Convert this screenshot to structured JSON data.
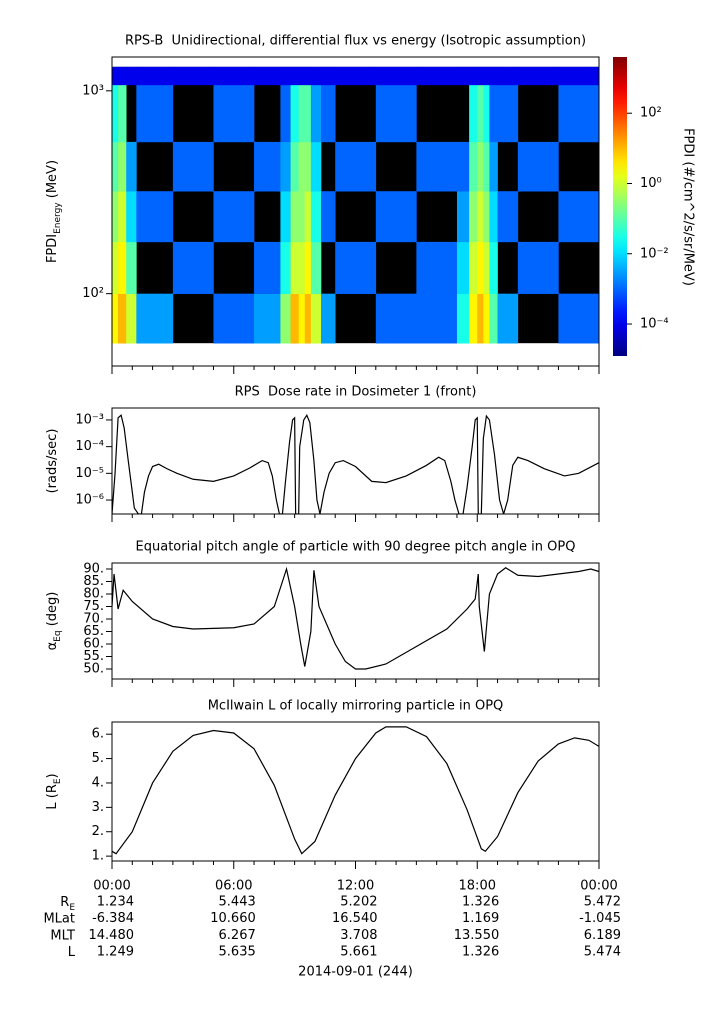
{
  "chart_data": [
    {
      "type": "heatmap",
      "title": "RPS-B  Unidirectional, differential flux vs energy (Isotropic assumption)",
      "ylabel": [
        "FPDI",
        "Energy",
        " (MeV)"
      ],
      "log_y": true,
      "xlim": [
        0,
        24
      ],
      "xticks": [
        0,
        6,
        12,
        18,
        24
      ],
      "xminor": 1,
      "ylim": [
        44,
        1468
      ],
      "yticks": [
        {
          "value": 100,
          "label": "10²"
        },
        {
          "value": 1000,
          "label": "10³"
        }
      ],
      "x_edges": [
        0,
        0.3,
        0.7,
        1.2,
        3,
        5,
        7,
        8.3,
        8.8,
        9.2,
        9.5,
        9.8,
        10.3,
        11,
        13,
        15,
        17,
        17.6,
        18,
        18.3,
        18.6,
        19,
        20,
        22,
        24
      ],
      "y_edges": [
        57,
        100,
        180,
        320,
        560,
        1070,
        1313
      ],
      "z": [
        [
          3,
          1,
          0.3,
          0.1,
          0.03,
          0.0001
        ],
        [
          10,
          3,
          1,
          0.3,
          0.1,
          0.0001
        ],
        [
          1,
          0.1,
          0.01,
          0.003,
          null,
          0.0001
        ],
        [
          0.003,
          null,
          0.001,
          null,
          0.001,
          0.0001
        ],
        [
          null,
          0.001,
          null,
          0.001,
          null,
          0.0001
        ],
        [
          0.001,
          null,
          0.001,
          null,
          0.001,
          0.0001
        ],
        [
          0.003,
          0.001,
          null,
          0.001,
          null,
          0.0001
        ],
        [
          0.3,
          0.03,
          0.01,
          0.003,
          0.001,
          0.0001
        ],
        [
          10,
          1,
          0.3,
          0.1,
          0.03,
          0.0001
        ],
        [
          3,
          1,
          0.3,
          0.3,
          0.1,
          0.0001
        ],
        [
          10,
          3,
          1,
          0.3,
          0.1,
          0.0001
        ],
        [
          1,
          0.1,
          0.03,
          0.01,
          0.003,
          0.0001
        ],
        [
          0.003,
          null,
          0.001,
          null,
          0.001,
          0.0001
        ],
        [
          null,
          0.001,
          null,
          0.001,
          null,
          0.0001
        ],
        [
          0.001,
          null,
          0.001,
          null,
          0.001,
          0.0001
        ],
        [
          0.001,
          0.001,
          null,
          0.001,
          null,
          0.0001
        ],
        [
          0.03,
          0.01,
          0.003,
          0.001,
          null,
          0.0001
        ],
        [
          3,
          1,
          0.3,
          0.1,
          0.03,
          0.0001
        ],
        [
          10,
          3,
          1,
          0.3,
          0.1,
          0.0001
        ],
        [
          3,
          1,
          0.3,
          0.1,
          0.03,
          0.0001
        ],
        [
          0.1,
          0.03,
          0.01,
          0.003,
          0.001,
          0.0001
        ],
        [
          0.003,
          null,
          0.001,
          null,
          0.001,
          0.0001
        ],
        [
          null,
          0.001,
          null,
          0.001,
          null,
          0.0001
        ],
        [
          0.001,
          null,
          0.001,
          null,
          0.001,
          0.0001
        ]
      ],
      "colormap": "jet",
      "colorbar_label": "FPDI (#/cm^2/s/sr/MeV)",
      "clim": [
        1.23e-05,
        3981
      ],
      "cticks": [
        {
          "value": 0.0001,
          "label": "10⁻⁴"
        },
        {
          "value": 0.01,
          "label": "10⁻²"
        },
        {
          "value": 1,
          "label": "10⁰"
        },
        {
          "value": 100,
          "label": "10²"
        }
      ]
    },
    {
      "type": "line",
      "title": "RPS  Dose rate in Dosimeter 1 (front)",
      "ylabel": [
        "(rads/sec)"
      ],
      "log_y": true,
      "xlim": [
        0,
        24
      ],
      "xticks": [
        0,
        6,
        12,
        18,
        24
      ],
      "xminor": 1,
      "ylim": [
        3e-07,
        0.0028
      ],
      "yticks": [
        {
          "value": 1e-06,
          "label": "10⁻⁶"
        },
        {
          "value": 1e-05,
          "label": "10⁻⁵"
        },
        {
          "value": 0.0001,
          "label": "10⁻⁴"
        },
        {
          "value": 0.001,
          "label": "10⁻³"
        }
      ],
      "color": "#000000",
      "x": [
        0,
        0.15,
        0.3,
        0.45,
        0.6,
        0.8,
        1.0,
        1.1,
        1.3,
        1.45,
        1.6,
        1.8,
        2.0,
        2.3,
        2.7,
        3.2,
        4,
        5,
        6,
        6.8,
        7.4,
        7.7,
        7.9,
        8.1,
        8.25,
        8.4,
        8.55,
        8.75,
        8.9,
        9.0,
        9.05,
        9.2,
        9.25,
        9.45,
        9.6,
        9.75,
        9.95,
        10.1,
        10.25,
        10.45,
        10.7,
        11.0,
        11.4,
        12,
        12.8,
        13.5,
        14.5,
        15.5,
        16.1,
        16.4,
        16.7,
        16.9,
        17.1,
        17.3,
        17.5,
        17.75,
        17.9,
        18.0,
        18.05,
        18.2,
        18.3,
        18.45,
        18.6,
        18.85,
        19.1,
        19.3,
        19.5,
        19.75,
        20.0,
        20.5,
        21.3,
        22.3,
        23,
        24
      ],
      "values": [
        3e-07,
        1e-05,
        0.0012,
        0.0015,
        0.0005,
        3e-05,
        2e-06,
        5e-07,
        3e-07,
        3e-07,
        2e-06,
        8e-06,
        1.8e-05,
        2.2e-05,
        1.5e-05,
        1e-05,
        6e-06,
        5e-06,
        8e-06,
        1.6e-05,
        3e-05,
        2.5e-05,
        8e-06,
        1e-06,
        3e-07,
        3e-07,
        5e-06,
        0.00015,
        0.001,
        0.0012,
        3e-07,
        3e-07,
        0.0001,
        0.001,
        0.0015,
        0.0008,
        3e-05,
        1e-06,
        3e-07,
        2e-06,
        1e-05,
        2.5e-05,
        3e-05,
        1.8e-05,
        5e-06,
        4.5e-06,
        8e-06,
        2e-05,
        4e-05,
        3e-05,
        5e-06,
        1e-06,
        3e-07,
        3e-07,
        3e-06,
        0.0001,
        0.001,
        0.0012,
        3e-07,
        3e-07,
        0.0002,
        0.0014,
        0.001,
        5e-05,
        1e-06,
        3e-07,
        1e-06,
        2e-05,
        4e-05,
        3e-05,
        1.5e-05,
        8e-06,
        1e-05,
        2.5e-05
      ]
    },
    {
      "type": "line",
      "title": "Equatorial pitch angle of particle with 90 degree pitch angle in OPQ",
      "ylabel": [
        "α",
        "Eq",
        " (deg)"
      ],
      "log_y": false,
      "xlim": [
        0,
        24
      ],
      "xticks": [
        0,
        6,
        12,
        18,
        24
      ],
      "xminor": 1,
      "ylim": [
        46,
        92.4
      ],
      "yticks": [
        {
          "value": 50,
          "label": "50."
        },
        {
          "value": 55,
          "label": "55."
        },
        {
          "value": 60,
          "label": "60."
        },
        {
          "value": 65,
          "label": "65."
        },
        {
          "value": 70,
          "label": "70."
        },
        {
          "value": 75,
          "label": "75."
        },
        {
          "value": 80,
          "label": "80."
        },
        {
          "value": 85,
          "label": "85."
        },
        {
          "value": 90,
          "label": "90."
        }
      ],
      "color": "#000000",
      "x": [
        0,
        0.1,
        0.3,
        0.55,
        1,
        2,
        3,
        4,
        6,
        7,
        8,
        8.6,
        9,
        9.3,
        9.5,
        9.8,
        9.95,
        10.2,
        11,
        11.5,
        12,
        12.5,
        13.5,
        15,
        16.5,
        17.5,
        17.9,
        18.05,
        18.1,
        18.35,
        18.6,
        19,
        19.4,
        20,
        21,
        22,
        23,
        23.6,
        24
      ],
      "values": [
        75,
        88,
        74,
        81.5,
        77,
        70,
        67,
        66,
        66.5,
        68,
        75,
        90,
        75,
        60,
        51,
        65,
        89.5,
        75,
        60,
        53,
        50,
        50,
        52,
        59,
        66,
        74,
        78,
        88,
        75,
        57,
        80,
        88,
        90.5,
        87.5,
        87,
        88,
        89,
        90,
        89
      ]
    },
    {
      "type": "line",
      "title": "McIlwain L of locally mirroring particle in OPQ",
      "ylabel": [
        "L (R",
        "E",
        ")"
      ],
      "log_y": false,
      "xlim": [
        0,
        24
      ],
      "xminor": 1,
      "xticks": [
        {
          "value": 0,
          "label": "00:00"
        },
        {
          "value": 6,
          "label": "06:00"
        },
        {
          "value": 12,
          "label": "12:00"
        },
        {
          "value": 18,
          "label": "18:00"
        },
        {
          "value": 24,
          "label": "00:00"
        }
      ],
      "ylim": [
        0.8,
        6.5
      ],
      "yticks": [
        {
          "value": 1,
          "label": "1."
        },
        {
          "value": 2,
          "label": "2."
        },
        {
          "value": 3,
          "label": "3."
        },
        {
          "value": 4,
          "label": "4."
        },
        {
          "value": 5,
          "label": "5."
        },
        {
          "value": 6,
          "label": "6."
        }
      ],
      "color": "#000000",
      "x": [
        0,
        0.2,
        1,
        2,
        3,
        4,
        5,
        6,
        7,
        8,
        9,
        9.35,
        10,
        11,
        12,
        13,
        13.5,
        14.5,
        15.5,
        16.5,
        17.5,
        18.2,
        18.4,
        19,
        20,
        21,
        22,
        22.8,
        23.5,
        24
      ],
      "values": [
        1.2,
        1.1,
        2.0,
        4.0,
        5.3,
        5.95,
        6.15,
        6.05,
        5.4,
        3.9,
        1.7,
        1.1,
        1.6,
        3.5,
        5.0,
        6.05,
        6.3,
        6.3,
        5.9,
        4.8,
        2.9,
        1.3,
        1.2,
        1.8,
        3.6,
        4.9,
        5.6,
        5.85,
        5.75,
        5.5
      ]
    }
  ],
  "ephemeris": {
    "rows": [
      {
        "label": "R",
        "sub": "E",
        "values": [
          "1.234",
          "5.443",
          "5.202",
          "1.326",
          "5.472"
        ]
      },
      {
        "label": "MLat",
        "values": [
          "-6.384",
          "10.660",
          "16.540",
          "1.169",
          "-1.045"
        ]
      },
      {
        "label": "MLT",
        "values": [
          "14.480",
          "6.267",
          "3.708",
          "13.550",
          "6.189"
        ]
      },
      {
        "label": "L",
        "values": [
          "1.249",
          "5.635",
          "5.661",
          "1.326",
          "5.474"
        ]
      }
    ],
    "date": "2014-09-01 (244)"
  }
}
